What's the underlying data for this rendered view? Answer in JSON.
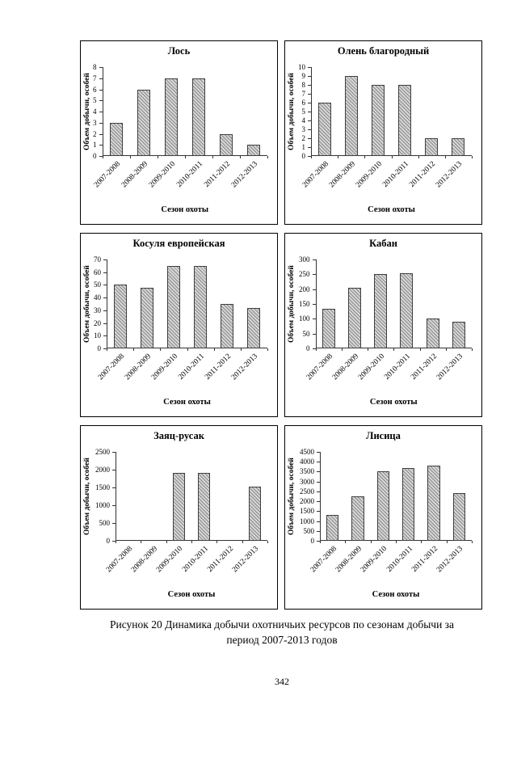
{
  "page": {
    "caption_line1": "Рисунок 20 Динамика добычи охотничьих ресурсов по сезонам добычи за",
    "caption_line2": "период 2007-2013 годов",
    "page_number": "342"
  },
  "chart_data": [
    {
      "type": "bar",
      "title": "Лось",
      "ylabel": "Объем добычи, особей",
      "xlabel": "Сезон охоты",
      "categories": [
        "2007-2008",
        "2008-2009",
        "2009-2010",
        "2010-2011",
        "2011-2012",
        "2012-2013"
      ],
      "values": [
        3,
        6,
        7,
        7,
        2,
        1
      ],
      "ylim": [
        0,
        8
      ],
      "ytick_step": 1,
      "grid": false,
      "legend": false
    },
    {
      "type": "bar",
      "title": "Олень благородный",
      "ylabel": "Объем добычи, особей",
      "xlabel": "Сезон охоты",
      "categories": [
        "2007-2008",
        "2008-2009",
        "2009-2010",
        "2010-2011",
        "2011-2012",
        "2012-2013"
      ],
      "values": [
        6,
        9,
        8,
        8,
        2,
        2
      ],
      "ylim": [
        0,
        10
      ],
      "ytick_step": 1,
      "grid": false,
      "legend": false
    },
    {
      "type": "bar",
      "title": "Косуля европейская",
      "ylabel": "Объем добычи, особей",
      "xlabel": "Сезон охоты",
      "categories": [
        "2007-2008",
        "2008-2009",
        "2009-2010",
        "2010-2011",
        "2011-2012",
        "2012-2013"
      ],
      "values": [
        50,
        48,
        65,
        65,
        35,
        32
      ],
      "ylim": [
        0,
        70
      ],
      "ytick_step": 10,
      "grid": false,
      "legend": false
    },
    {
      "type": "bar",
      "title": "Кабан",
      "ylabel": "Объем добычи, особей",
      "xlabel": "Сезон охоты",
      "categories": [
        "2007-2008",
        "2008-2009",
        "2009-2010",
        "2010-2011",
        "2011-2012",
        "2012-2013"
      ],
      "values": [
        135,
        205,
        250,
        255,
        100,
        90
      ],
      "ylim": [
        0,
        300
      ],
      "ytick_step": 50,
      "grid": false,
      "legend": false
    },
    {
      "type": "bar",
      "title": "Заяц-русак",
      "ylabel": "Объем добычи, особей",
      "xlabel": "Сезон охоты",
      "categories": [
        "2007-2008",
        "2008-2009",
        "2009-2010",
        "2010-2011",
        "2011-2012",
        "2012-2013"
      ],
      "values": [
        0,
        0,
        1900,
        1900,
        0,
        1520
      ],
      "ylim": [
        0,
        2500
      ],
      "ytick_step": 500,
      "grid": false,
      "legend": false
    },
    {
      "type": "bar",
      "title": "Лисица",
      "ylabel": "Объем добычи, особей",
      "xlabel": "Сезон охоты",
      "categories": [
        "2007-2008",
        "2008-2009",
        "2009-2010",
        "2010-2011",
        "2011-2012",
        "2012-2013"
      ],
      "values": [
        1300,
        2250,
        3500,
        3700,
        3800,
        2400
      ],
      "ylim": [
        0,
        4500
      ],
      "ytick_step": 500,
      "grid": false,
      "legend": false
    }
  ]
}
